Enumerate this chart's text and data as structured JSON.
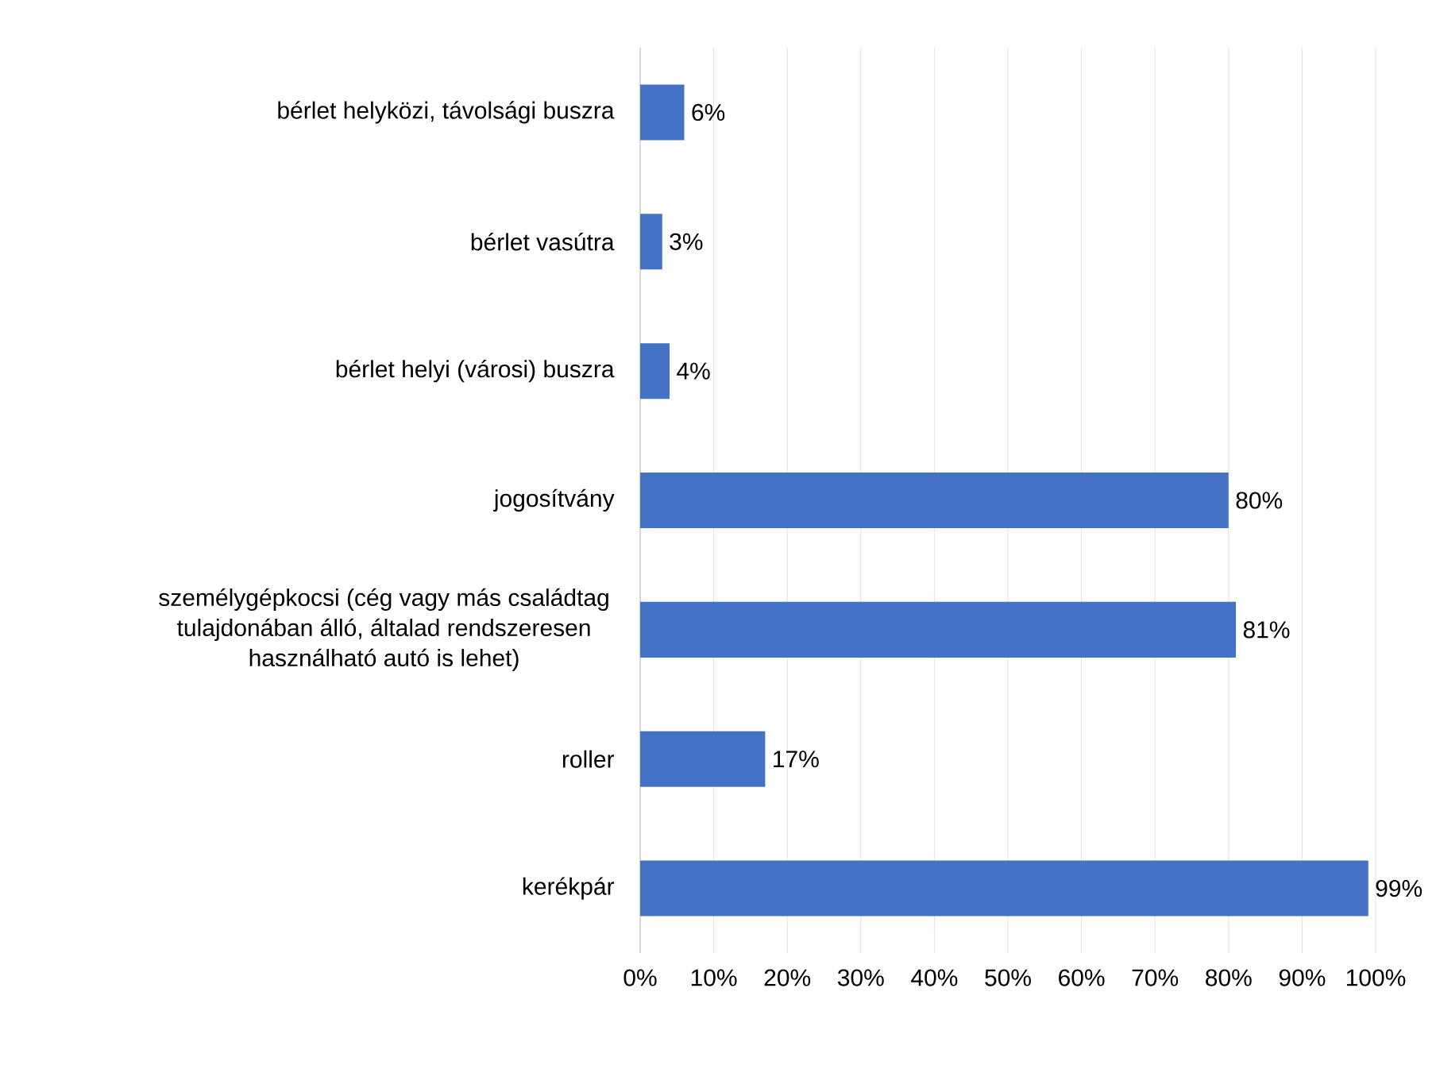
{
  "chart_data": {
    "type": "bar",
    "orientation": "horizontal",
    "categories": [
      "bérlet helyközi, távolsági buszra",
      "bérlet vasútra",
      "bérlet helyi (városi) buszra",
      "jogosítvány",
      "személygépkocsi (cég vagy más családtag tulajdonában álló, általad rendszeresen használható autó is lehet)",
      "roller",
      "kerékpár"
    ],
    "values": [
      6,
      3,
      4,
      80,
      81,
      17,
      99
    ],
    "value_labels": [
      "6%",
      "3%",
      "4%",
      "80%",
      "81%",
      "17%",
      "99%"
    ],
    "color": "#4472c4",
    "xlim": [
      0,
      100
    ],
    "xticks": [
      {
        "value": 0,
        "label": "0%"
      },
      {
        "value": 10,
        "label": "10%"
      },
      {
        "value": 20,
        "label": "20%"
      },
      {
        "value": 30,
        "label": "30%"
      },
      {
        "value": 40,
        "label": "40%"
      },
      {
        "value": 50,
        "label": "50%"
      },
      {
        "value": 60,
        "label": "60%"
      },
      {
        "value": 70,
        "label": "70%"
      },
      {
        "value": 80,
        "label": "80%"
      },
      {
        "value": 90,
        "label": "90%"
      },
      {
        "value": 100,
        "label": "100%"
      }
    ],
    "grid": "x"
  }
}
